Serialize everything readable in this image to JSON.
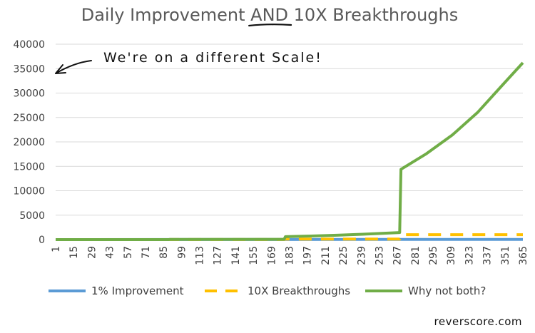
{
  "chart_data": {
    "type": "line",
    "title_parts": [
      "Daily Improvement ",
      "AND",
      " 10X Breakthroughs"
    ],
    "xlabel": "",
    "ylabel": "",
    "ylim": [
      0,
      40000
    ],
    "yticks": [
      "0",
      "5000",
      "10000",
      "15000",
      "20000",
      "25000",
      "30000",
      "35000",
      "40000"
    ],
    "ytick_values": [
      0,
      5000,
      10000,
      15000,
      20000,
      25000,
      30000,
      35000,
      40000
    ],
    "xlim": [
      1,
      365
    ],
    "xticks": [
      "1",
      "15",
      "29",
      "43",
      "57",
      "71",
      "85",
      "99",
      "113",
      "127",
      "141",
      "155",
      "169",
      "183",
      "197",
      "211",
      "225",
      "239",
      "253",
      "267",
      "281",
      "295",
      "309",
      "323",
      "337",
      "351",
      "365"
    ],
    "xtick_values": [
      1,
      15,
      29,
      43,
      57,
      71,
      85,
      99,
      113,
      127,
      141,
      155,
      169,
      183,
      197,
      211,
      225,
      239,
      253,
      267,
      281,
      295,
      309,
      323,
      337,
      351,
      365
    ],
    "grid": "horizontal",
    "legend_position": "bottom",
    "series": [
      {
        "name": "1% Improvement",
        "color": "#5b9bd5",
        "style": "solid",
        "x": [
          1,
          365
        ],
        "values": [
          1.01,
          37.78
        ]
      },
      {
        "name": "10X Breakthroughs",
        "color": "#ffc000",
        "style": "dashed",
        "x": [
          1,
          89,
          90,
          179,
          180,
          269,
          270,
          365
        ],
        "values": [
          1,
          1,
          10,
          10,
          100,
          100,
          1000,
          1000
        ]
      },
      {
        "name": "Why not both?",
        "color": "#70ad47",
        "style": "solid",
        "x": [
          1,
          89,
          90,
          179,
          180,
          200,
          220,
          240,
          260,
          269,
          270,
          290,
          310,
          330,
          350,
          365
        ],
        "values": [
          2,
          2.4,
          25,
          61,
          600,
          730,
          890,
          1090,
          1330,
          1450,
          14400,
          17600,
          21400,
          26100,
          31900,
          36200
        ]
      }
    ],
    "annotation": "We're on a different Scale!",
    "credit": "reverscore.com"
  }
}
